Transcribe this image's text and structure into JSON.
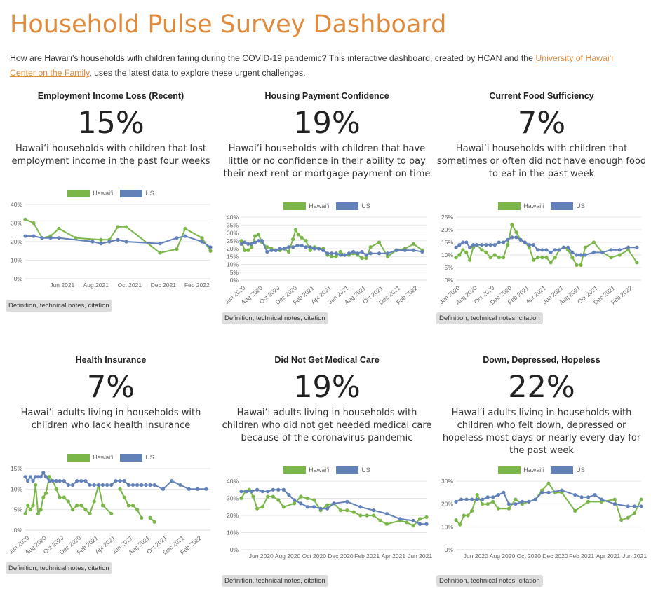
{
  "header": {
    "title": "Household Pulse Survey Dashboard",
    "intro_before_link": "How are Hawai‘i’s households with children faring during the COVID-19 pandemic? This interactive dashboard, created by HCAN and the ",
    "intro_link": "University of Hawai‘i Center on the Family",
    "intro_after_link": ", uses the latest data to explore these urgent challenges."
  },
  "colors": {
    "hawaii": "#7ab648",
    "us": "#6281b9",
    "accent": "#e08b3c"
  },
  "cards": [
    {
      "title": "Employment Income Loss (Recent)",
      "value": "15%",
      "description": "Hawai‘i households with children that lost employment income in the past four weeks",
      "notes_label": "Definition, technical notes, citation",
      "legend": {
        "hawaii": "Hawai‘i",
        "us": "US"
      }
    },
    {
      "title": "Housing Payment Confidence",
      "value": "19%",
      "description": "Hawai‘i households with children that have little or no confidence in their ability to pay their next rent or mortgage payment on time",
      "notes_label": "Definition, technical notes, citation",
      "legend": {
        "hawaii": "Hawai‘i",
        "us": "US"
      }
    },
    {
      "title": "Current Food Sufficiency",
      "value": "7%",
      "description": "Hawai‘i households with children that sometimes or often did not have enough food to eat in the past week",
      "notes_label": "Definition, technical notes, citation",
      "legend": {
        "hawaii": "Hawai‘i",
        "us": "US"
      }
    },
    {
      "title": "Health Insurance",
      "value": "7%",
      "description": "Hawai‘i adults living in households with children who lack health insurance",
      "notes_label": "Definition, technical notes, citation",
      "legend": {
        "hawaii": "Hawai‘i",
        "us": "US"
      }
    },
    {
      "title": "Did Not Get Medical Care",
      "value": "19%",
      "description": "Hawai‘i adults living in households with children who did not get needed medical care because of the coronavirus pandemic",
      "notes_label": "Definition, technical notes, citation",
      "legend": {
        "hawaii": "Hawai‘i",
        "us": "US"
      }
    },
    {
      "title": "Down, Depressed, Hopeless",
      "value": "22%",
      "description": "Hawai‘i adults living in households with children who felt down, depressed or hopeless most days or nearly every day for the past week",
      "notes_label": "Definition, technical notes, citation",
      "legend": {
        "hawaii": "Hawai‘i",
        "us": "US"
      }
    }
  ],
  "chart_data": [
    {
      "type": "line",
      "x_ticks": [
        "Jun 2021",
        "Aug 2021",
        "Oct 2021",
        "Dec 2021",
        "Feb 2022"
      ],
      "x_tick_index": [
        2.2,
        4.2,
        6.2,
        8.2,
        10.2
      ],
      "x_range": [
        0,
        11
      ],
      "y_ticks": [
        "0%",
        "10%",
        "20%",
        "30%",
        "40%"
      ],
      "ylim": [
        0,
        40
      ],
      "series": [
        {
          "name": "Hawai‘i",
          "x": [
            0,
            0.5,
            1,
            1.5,
            2,
            3,
            4.5,
            5,
            5.5,
            6,
            8,
            9,
            9.5,
            10.5,
            11
          ],
          "values": [
            32,
            30,
            22,
            23,
            27,
            22,
            21,
            21,
            28,
            28,
            14,
            16,
            27,
            22,
            15
          ]
        },
        {
          "name": "US",
          "x": [
            0,
            0.5,
            1,
            1.5,
            2,
            4,
            4.5,
            5,
            5.5,
            6,
            8,
            9,
            9.5,
            10.5,
            11
          ],
          "values": [
            23,
            23,
            22,
            22,
            22,
            20,
            19,
            20,
            21,
            20,
            19,
            22,
            23,
            20,
            17
          ]
        }
      ]
    },
    {
      "type": "line",
      "x_ticks": [
        "Jun 2020",
        "Aug 2020",
        "Oct 2020",
        "Dec 2020",
        "Feb 2021",
        "Apr 2021",
        "Jun 2021",
        "Aug 2021",
        "Oct 2021",
        "Dec 2021",
        "Feb 2022"
      ],
      "x_tick_index": [
        0.5,
        2.5,
        4.5,
        6.5,
        8.5,
        10.5,
        12.5,
        14.5,
        16.5,
        18.5,
        20.5
      ],
      "x_range": [
        0,
        21.5
      ],
      "y_ticks": [
        "0%",
        "5%",
        "10%",
        "15%",
        "20%",
        "25%",
        "30%",
        "35%",
        "40%"
      ],
      "ylim": [
        0,
        40
      ],
      "series": [
        {
          "name": "Hawai‘i",
          "x": [
            0,
            0.4,
            0.8,
            1.2,
            1.6,
            2,
            2.4,
            3,
            3.5,
            4,
            4.5,
            5,
            5.5,
            6,
            6.3,
            6.6,
            7,
            7.5,
            8,
            8.5,
            9,
            9.5,
            10,
            10.5,
            11,
            11.5,
            12,
            12.5,
            13,
            13.5,
            14,
            14.5,
            15,
            16,
            17,
            18,
            19,
            20,
            21
          ],
          "values": [
            25,
            19,
            19,
            21,
            28,
            29,
            24,
            21,
            20,
            19,
            19,
            20,
            18,
            26,
            32,
            29,
            27,
            25,
            19,
            21,
            20,
            20,
            16,
            15,
            15,
            18,
            16,
            16,
            17,
            16,
            14,
            14,
            21,
            24,
            15,
            19,
            20,
            23,
            19
          ]
        },
        {
          "name": "US",
          "x": [
            0,
            0.4,
            0.8,
            1.2,
            1.6,
            2,
            2.4,
            3,
            3.5,
            4,
            4.5,
            5,
            5.5,
            6,
            6.5,
            7,
            7.5,
            8,
            8.5,
            9,
            9.5,
            10,
            10.5,
            11,
            11.5,
            12,
            12.5,
            13,
            13.5,
            14,
            14.5,
            15,
            16,
            17,
            18,
            19,
            20,
            21
          ],
          "values": [
            23,
            24,
            23,
            23,
            24,
            25,
            25,
            18,
            19,
            19,
            20,
            20,
            21,
            21,
            22,
            22,
            21,
            21,
            20,
            20,
            19,
            17,
            17,
            17,
            16,
            16,
            17,
            18,
            17,
            18,
            16,
            17,
            17,
            17,
            19,
            19,
            19,
            18
          ]
        }
      ]
    },
    {
      "type": "line",
      "x_ticks": [
        "Jun 2020",
        "Aug 2020",
        "Oct 2020",
        "Dec 2020",
        "Feb 2021",
        "Apr 2021",
        "Jun 2021",
        "Aug 2021",
        "Oct 2021",
        "Dec 2021",
        "Feb 2022"
      ],
      "x_tick_index": [
        0.5,
        2.5,
        4.5,
        6.5,
        8.5,
        10.5,
        12.5,
        14.5,
        16.5,
        18.5,
        20.5
      ],
      "x_range": [
        0,
        21.5
      ],
      "y_ticks": [
        "0%",
        "5%",
        "10%",
        "15%",
        "20%",
        "25%"
      ],
      "ylim": [
        0,
        25
      ],
      "series": [
        {
          "name": "Hawai‘i",
          "x": [
            0,
            0.4,
            0.8,
            1.2,
            1.6,
            2,
            2.4,
            3,
            3.5,
            4,
            4.5,
            5,
            5.5,
            6,
            6.5,
            7,
            7.5,
            8,
            8.5,
            9,
            9.5,
            10,
            10.5,
            11,
            11.5,
            12,
            12.5,
            13,
            13.5,
            14,
            14.5,
            15,
            16,
            17,
            18,
            19,
            20,
            21
          ],
          "values": [
            9,
            10,
            12,
            11,
            8,
            13,
            14,
            12,
            11,
            9,
            10,
            9,
            9,
            14,
            22,
            19,
            16,
            15,
            13,
            8,
            9,
            9,
            9,
            7,
            9,
            12,
            13,
            12,
            9,
            6,
            6,
            13,
            15,
            11,
            9,
            10,
            12,
            7
          ]
        },
        {
          "name": "US",
          "x": [
            0,
            0.4,
            0.8,
            1.2,
            1.6,
            2,
            2.4,
            3,
            3.5,
            4,
            4.5,
            5,
            5.5,
            6,
            6.5,
            7,
            7.5,
            8,
            8.5,
            9,
            9.5,
            10,
            10.5,
            11,
            11.5,
            12,
            12.5,
            13,
            13.5,
            14,
            14.5,
            15,
            16,
            17,
            18,
            19,
            20,
            21
          ],
          "values": [
            13,
            14,
            15,
            15,
            13,
            14,
            14,
            14,
            14,
            14,
            14,
            15,
            15,
            16,
            17,
            17,
            16,
            15,
            14,
            14,
            12,
            12,
            12,
            11,
            12,
            12,
            13,
            13,
            11,
            10,
            10,
            10,
            11,
            11,
            12,
            12,
            13,
            13
          ]
        }
      ]
    },
    {
      "type": "line",
      "x_ticks": [
        "Jun 2020",
        "Aug 2020",
        "Oct 2020",
        "Dec 2020",
        "Feb 2021",
        "Apr 2021",
        "Jun 2021",
        "Aug 2021",
        "Oct 2021",
        "Dec 2021",
        "Feb 2022"
      ],
      "x_tick_index": [
        0.5,
        2.5,
        4.5,
        6.5,
        8.5,
        10.5,
        12.5,
        14.5,
        16.5,
        18.5,
        20.5
      ],
      "x_range": [
        0,
        21.5
      ],
      "y_ticks": [
        "0%",
        "5%",
        "10%",
        "15%"
      ],
      "ylim": [
        0,
        15
      ],
      "series": [
        {
          "name": "Hawai‘i",
          "x": [
            0,
            0.3,
            0.6,
            0.9,
            1.2,
            1.5,
            1.8,
            2.1,
            2.4,
            2.8,
            3.2,
            3.6,
            4,
            4.5,
            5,
            5.5,
            6,
            6.5,
            7,
            7.5,
            8,
            8.5,
            9,
            10,
            10.5,
            11,
            11.5,
            12,
            12.5,
            13,
            13.5,
            14,
            14.5,
            15
          ],
          "values": [
            4,
            6,
            5,
            6,
            11,
            4,
            5,
            8,
            9,
            13,
            12,
            10,
            8,
            8,
            7,
            5,
            6,
            6,
            5,
            4,
            7,
            11,
            6,
            4,
            null,
            10,
            8,
            6,
            6,
            5,
            3,
            null,
            3,
            2
          ]
        },
        {
          "name": "US",
          "x": [
            0,
            0.3,
            0.6,
            0.9,
            1.2,
            1.5,
            1.8,
            2.1,
            2.4,
            2.8,
            3.2,
            3.6,
            4,
            4.5,
            5,
            5.5,
            6,
            6.5,
            7,
            7.5,
            8,
            8.5,
            9,
            9.5,
            10,
            10.5,
            11,
            11.5,
            12,
            12.5,
            13,
            13.5,
            14,
            14.5,
            15,
            16,
            17,
            18,
            19,
            20,
            21
          ],
          "values": [
            13,
            12,
            13,
            12,
            13,
            13,
            13,
            14,
            13,
            12,
            12,
            12,
            12,
            12,
            11,
            11,
            12,
            12,
            12,
            11,
            11,
            11,
            11,
            11,
            11,
            12,
            12,
            12,
            11,
            11,
            11,
            11,
            11,
            11,
            11,
            10,
            12,
            11,
            10,
            10,
            10
          ]
        }
      ]
    },
    {
      "type": "line",
      "x_ticks": [
        "Jun 2020",
        "Aug 2020",
        "Oct 2020",
        "Dec 2020",
        "Feb 2021",
        "Apr 2021",
        "Jun 2021"
      ],
      "x_tick_index": [
        1.5,
        3.5,
        5.5,
        7.5,
        9.5,
        11.5,
        13.5
      ],
      "x_range": [
        0,
        14
      ],
      "y_ticks": [
        "0%",
        "10%",
        "20%",
        "30%",
        "40%"
      ],
      "ylim": [
        0,
        40
      ],
      "series": [
        {
          "name": "Hawai‘i",
          "x": [
            0,
            0.3,
            0.6,
            0.9,
            1.2,
            1.6,
            2,
            2.4,
            2.8,
            3.2,
            4,
            4.5,
            5,
            5.5,
            6,
            6.5,
            7,
            7.5,
            8,
            8.5,
            9,
            9.5,
            10,
            10.5,
            11,
            12,
            12.5,
            13,
            13.5,
            14
          ],
          "values": [
            30,
            34,
            35,
            31,
            24,
            25,
            31,
            31,
            29,
            25,
            27,
            31,
            30,
            29,
            23,
            26,
            27,
            23,
            23,
            22,
            20,
            20,
            20,
            17,
            15,
            17,
            16,
            14,
            18,
            19
          ]
        },
        {
          "name": "US",
          "x": [
            0,
            0.4,
            0.8,
            1.2,
            1.6,
            2,
            2.4,
            2.8,
            3.2,
            3.6,
            4,
            4.5,
            5,
            5.5,
            6,
            6.5,
            7,
            8,
            9,
            10,
            11,
            12,
            13,
            13.5,
            14
          ],
          "values": [
            34,
            34,
            34,
            35,
            34,
            34,
            35,
            35,
            35,
            32,
            29,
            27,
            25,
            25,
            24,
            24,
            27,
            28,
            25,
            23,
            21,
            18,
            17,
            15,
            15
          ]
        }
      ]
    },
    {
      "type": "line",
      "x_ticks": [
        "Jun 2020",
        "Aug 2020",
        "Oct 2020",
        "Dec 2020",
        "Feb 2021",
        "Apr 2021",
        "Jun 2021"
      ],
      "x_tick_index": [
        1.5,
        3.5,
        5.5,
        7.5,
        9.5,
        11.5,
        13.5
      ],
      "x_range": [
        0,
        14
      ],
      "y_ticks": [
        "0%",
        "10%",
        "20%",
        "30%"
      ],
      "ylim": [
        0,
        30
      ],
      "series": [
        {
          "name": "Hawai‘i",
          "x": [
            0,
            0.3,
            0.6,
            0.9,
            1.2,
            1.6,
            2,
            2.4,
            2.8,
            3.2,
            4,
            4.5,
            5,
            5.5,
            6,
            6.5,
            7,
            7.5,
            8,
            9,
            10,
            11,
            12,
            12.5,
            13,
            13.5,
            14
          ],
          "values": [
            13,
            11,
            15,
            15,
            17,
            24,
            20,
            20,
            21,
            18,
            18,
            22,
            20,
            21,
            22,
            26,
            29,
            25,
            25,
            17,
            21,
            21,
            22,
            13,
            14,
            16,
            22
          ]
        },
        {
          "name": "US",
          "x": [
            0,
            0.4,
            0.8,
            1.2,
            1.6,
            2,
            2.4,
            2.8,
            3.2,
            3.6,
            4,
            4.5,
            5,
            5.5,
            6,
            6.5,
            7,
            8,
            9,
            9.5,
            10,
            10.5,
            11,
            12,
            13,
            13.5,
            14
          ],
          "values": [
            21,
            22,
            22,
            22,
            22,
            22,
            23,
            23,
            24,
            25,
            20,
            20,
            21,
            21,
            22,
            25,
            25,
            26,
            24,
            23,
            23,
            24,
            22,
            20,
            19,
            19,
            19
          ]
        }
      ]
    }
  ]
}
